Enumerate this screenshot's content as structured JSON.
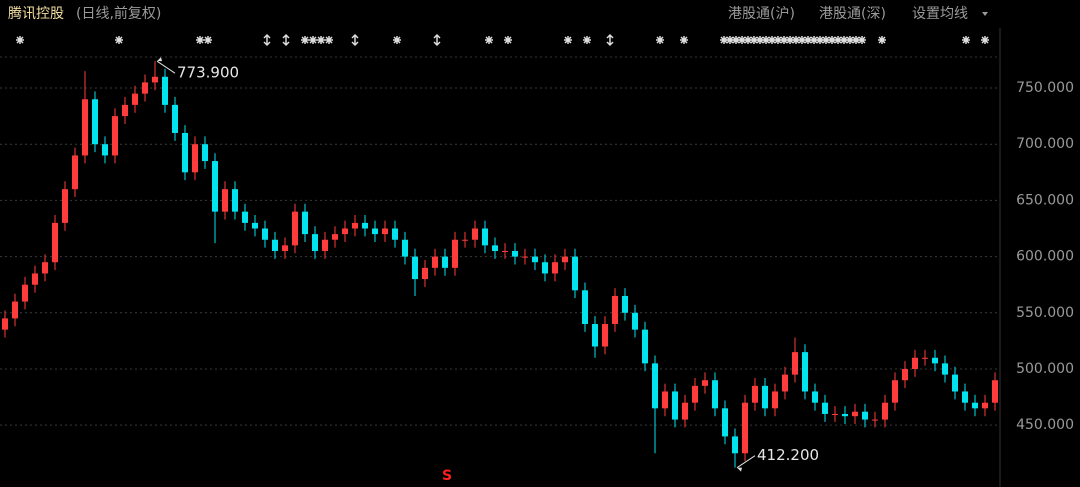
{
  "chart_data": {
    "type": "candlestick",
    "title": "腾讯控股",
    "subtitle": "(日线,前复权)",
    "buttons": [
      "港股通(沪)",
      "港股通(深)",
      "设置均线"
    ],
    "bottom_marker": "S",
    "up_color": "#ff3b3b",
    "down_color": "#00e4f0",
    "grid": true,
    "ylim": [
      395,
      780
    ],
    "yticks": [
      {
        "value": 750,
        "label": "750.000"
      },
      {
        "value": 700,
        "label": "700.000"
      },
      {
        "value": 650,
        "label": "650.000"
      },
      {
        "value": 600,
        "label": "600.000"
      },
      {
        "value": 550,
        "label": "550.000"
      },
      {
        "value": 500,
        "label": "500.000"
      },
      {
        "value": 450,
        "label": "450.000"
      }
    ],
    "annotations": [
      {
        "value": 773.9,
        "label": "773.900"
      },
      {
        "value": 412.2,
        "label": "412.200"
      }
    ],
    "open": [
      535,
      545,
      560,
      575,
      585,
      595,
      630,
      660,
      690,
      740,
      700,
      690,
      725,
      735,
      745,
      755,
      760,
      735,
      710,
      675,
      700,
      685,
      640,
      660,
      640,
      630,
      625,
      615,
      605,
      610,
      640,
      620,
      605,
      615,
      620,
      625,
      630,
      625,
      620,
      625,
      615,
      600,
      580,
      590,
      600,
      590,
      615,
      615,
      625,
      610,
      605,
      605,
      600,
      600,
      595,
      585,
      595,
      600,
      570,
      540,
      520,
      540,
      565,
      550,
      535,
      505,
      465,
      480,
      455,
      470,
      485,
      490,
      465,
      440,
      425,
      470,
      485,
      465,
      480,
      495,
      515,
      480,
      470,
      460,
      460,
      458,
      462,
      455,
      455,
      470,
      490,
      500,
      510,
      510,
      505,
      495,
      480,
      470,
      465,
      470
    ],
    "high": [
      552,
      567,
      582,
      592,
      602,
      637,
      667,
      697,
      765,
      747,
      707,
      732,
      742,
      752,
      762,
      773.9,
      767,
      742,
      717,
      707,
      707,
      692,
      667,
      667,
      647,
      637,
      632,
      622,
      617,
      647,
      647,
      627,
      622,
      627,
      632,
      637,
      637,
      632,
      632,
      632,
      622,
      607,
      597,
      607,
      607,
      622,
      622,
      632,
      632,
      617,
      612,
      612,
      607,
      607,
      602,
      602,
      607,
      607,
      577,
      547,
      547,
      572,
      572,
      557,
      542,
      512,
      487,
      487,
      477,
      492,
      497,
      497,
      472,
      447,
      477,
      492,
      492,
      487,
      502,
      528,
      522,
      487,
      477,
      467,
      467,
      469,
      469,
      462,
      477,
      497,
      507,
      517,
      517,
      517,
      512,
      502,
      487,
      477,
      477,
      497
    ],
    "low": [
      528,
      538,
      553,
      568,
      578,
      588,
      623,
      653,
      683,
      693,
      683,
      683,
      718,
      728,
      738,
      748,
      728,
      703,
      668,
      668,
      678,
      612,
      633,
      633,
      623,
      618,
      608,
      598,
      598,
      603,
      613,
      598,
      598,
      608,
      613,
      618,
      618,
      613,
      613,
      608,
      593,
      565,
      573,
      583,
      583,
      583,
      608,
      608,
      603,
      598,
      598,
      593,
      593,
      588,
      578,
      578,
      588,
      563,
      533,
      510,
      513,
      533,
      543,
      528,
      498,
      425,
      458,
      448,
      448,
      463,
      478,
      458,
      433,
      412.2,
      418,
      463,
      458,
      458,
      473,
      488,
      473,
      463,
      453,
      453,
      451,
      451,
      448,
      448,
      448,
      463,
      483,
      493,
      503,
      498,
      488,
      473,
      463,
      458,
      458,
      463
    ],
    "close": [
      545,
      560,
      575,
      585,
      595,
      630,
      660,
      690,
      740,
      700,
      690,
      725,
      735,
      745,
      755,
      760,
      735,
      710,
      675,
      700,
      685,
      640,
      660,
      640,
      630,
      625,
      615,
      605,
      610,
      640,
      620,
      605,
      615,
      620,
      625,
      630,
      625,
      620,
      625,
      615,
      600,
      580,
      590,
      600,
      590,
      615,
      615,
      625,
      610,
      605,
      605,
      600,
      600,
      595,
      585,
      595,
      600,
      570,
      540,
      520,
      540,
      565,
      550,
      535,
      505,
      465,
      480,
      455,
      470,
      485,
      490,
      465,
      440,
      425,
      470,
      485,
      465,
      480,
      495,
      515,
      480,
      470,
      460,
      460,
      458,
      462,
      455,
      455,
      470,
      490,
      500,
      510,
      510,
      505,
      495,
      480,
      470,
      465,
      470,
      490
    ]
  }
}
